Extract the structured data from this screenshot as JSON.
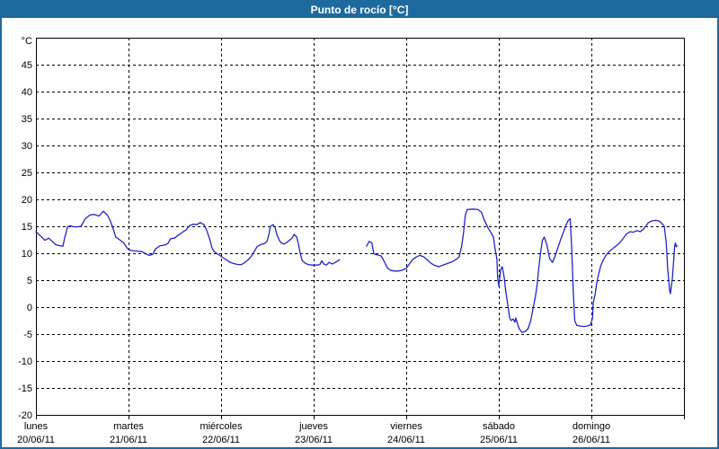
{
  "window": {
    "title": "Punto de rocío [°C]"
  },
  "colors": {
    "titlebar_bg": "#1e6a9e",
    "frame_border": "#1e6a9e",
    "plot_background": "#fdfefd",
    "grid": "#000000",
    "axis": "#000000",
    "line": "#2424c8",
    "title_text": "#ffffff",
    "label_text": "#000000"
  },
  "chart_data": {
    "type": "line",
    "title": "Punto de rocío [°C]",
    "y_unit_label": "°C",
    "xlabel": "",
    "ylabel": "",
    "ylim": [
      -20,
      50
    ],
    "y_ticks": [
      45,
      40,
      35,
      30,
      25,
      20,
      15,
      10,
      5,
      0,
      -5,
      -10,
      -15,
      -20
    ],
    "x_span_days": 7,
    "x_hours_total": 168,
    "x_categories": [
      {
        "name": "lunes",
        "date": "20/06/11"
      },
      {
        "name": "martes",
        "date": "21/06/11"
      },
      {
        "name": "miércoles",
        "date": "22/06/11"
      },
      {
        "name": "jueves",
        "date": "23/06/11"
      },
      {
        "name": "viernes",
        "date": "24/06/11"
      },
      {
        "name": "sábado",
        "date": "25/06/11"
      },
      {
        "name": "domingo",
        "date": "26/06/11"
      }
    ],
    "grid": "dashed",
    "legend_position": "none",
    "series": [
      {
        "name": "Punto de rocío",
        "unit": "°C",
        "color": "#2424c8",
        "x_encoding": "hours since lunes 20/06/11 00:00",
        "segments": [
          [
            [
              0,
              14
            ],
            [
              1.2,
              13.2
            ],
            [
              2.3,
              12.4
            ],
            [
              3.3,
              12.8
            ],
            [
              4.2,
              12.2
            ],
            [
              5.1,
              11.6
            ],
            [
              6.1,
              11.4
            ],
            [
              7,
              11.3
            ],
            [
              7.5,
              13
            ],
            [
              8.2,
              14.9
            ],
            [
              8.9,
              15.1
            ],
            [
              9.8,
              14.9
            ],
            [
              10.7,
              14.9
            ],
            [
              11.7,
              15
            ],
            [
              12.8,
              16.4
            ],
            [
              14,
              17.1
            ],
            [
              15.1,
              17.2
            ],
            [
              16.3,
              16.9
            ],
            [
              17.5,
              17.8
            ],
            [
              18.6,
              17
            ],
            [
              19.3,
              16
            ],
            [
              20,
              14.6
            ],
            [
              20.7,
              13
            ],
            [
              21.7,
              12.5
            ],
            [
              22.8,
              11.9
            ],
            [
              23.8,
              10.8
            ],
            [
              24.7,
              10.5
            ],
            [
              26.1,
              10.4
            ],
            [
              27.5,
              10.3
            ],
            [
              28.4,
              9.9
            ],
            [
              29.4,
              9.6
            ],
            [
              30.3,
              9.8
            ],
            [
              31,
              10.8
            ],
            [
              32.2,
              11.4
            ],
            [
              33.3,
              11.5
            ],
            [
              34.2,
              11.8
            ],
            [
              34.9,
              12.7
            ],
            [
              35.9,
              12.8
            ],
            [
              36.8,
              13.3
            ],
            [
              38,
              13.9
            ],
            [
              38.9,
              14.3
            ],
            [
              39.8,
              15.1
            ],
            [
              40.8,
              15.4
            ],
            [
              41.7,
              15.3
            ],
            [
              42.6,
              15.7
            ],
            [
              43.6,
              15.3
            ],
            [
              44.3,
              14.2
            ],
            [
              44.7,
              13.4
            ],
            [
              45.2,
              12.2
            ],
            [
              45.6,
              11.1
            ],
            [
              46.1,
              10.4
            ],
            [
              46.8,
              10
            ],
            [
              47.7,
              9.6
            ],
            [
              48,
              9.4
            ],
            [
              48.9,
              9
            ],
            [
              50.1,
              8.4
            ],
            [
              51.2,
              8.1
            ],
            [
              52.4,
              7.9
            ],
            [
              53.3,
              7.9
            ],
            [
              54,
              8.2
            ],
            [
              54.9,
              8.7
            ],
            [
              55.8,
              9.4
            ],
            [
              56.6,
              10.3
            ],
            [
              57.3,
              11.2
            ],
            [
              58.2,
              11.6
            ],
            [
              59.2,
              11.8
            ],
            [
              59.9,
              12.2
            ],
            [
              60.4,
              13.5
            ],
            [
              60.8,
              15
            ],
            [
              61.5,
              15.3
            ],
            [
              62,
              14.8
            ],
            [
              62.4,
              13.6
            ],
            [
              63.1,
              12.4
            ],
            [
              63.6,
              11.9
            ],
            [
              64.3,
              11.7
            ],
            [
              65.2,
              12.1
            ],
            [
              66.4,
              12.8
            ],
            [
              66.9,
              13.5
            ],
            [
              67.6,
              13
            ],
            [
              68,
              11.9
            ],
            [
              68.5,
              10
            ],
            [
              69,
              8.7
            ],
            [
              69.7,
              8.2
            ],
            [
              70.6,
              7.9
            ],
            [
              71.5,
              7.8
            ],
            [
              72.7,
              7.8
            ],
            [
              73.6,
              7.9
            ],
            [
              74.1,
              8.6
            ],
            [
              74.6,
              8
            ],
            [
              75.3,
              7.8
            ],
            [
              76,
              8.3
            ],
            [
              76.9,
              8
            ],
            [
              77.6,
              8.3
            ],
            [
              78.3,
              8.6
            ],
            [
              78.7,
              8.8
            ]
          ],
          [
            [
              85.7,
              11.3
            ],
            [
              86.4,
              12.2
            ],
            [
              87.1,
              11.9
            ],
            [
              87.6,
              9.9
            ],
            [
              88.5,
              9.7
            ],
            [
              89.5,
              9.5
            ],
            [
              90.2,
              8.6
            ],
            [
              91.1,
              7.3
            ],
            [
              92,
              6.8
            ],
            [
              93,
              6.7
            ],
            [
              94.1,
              6.7
            ],
            [
              95.1,
              6.9
            ],
            [
              96,
              7.2
            ],
            [
              96.9,
              8.1
            ],
            [
              97.6,
              8.8
            ],
            [
              98.6,
              9.3
            ],
            [
              99.5,
              9.6
            ],
            [
              100.4,
              9.4
            ],
            [
              101.3,
              8.9
            ],
            [
              102.3,
              8.2
            ],
            [
              103.2,
              7.8
            ],
            [
              104.4,
              7.5
            ],
            [
              105.5,
              7.8
            ],
            [
              106.7,
              8.1
            ],
            [
              107.9,
              8.4
            ],
            [
              109,
              8.9
            ],
            [
              109.7,
              9.3
            ],
            [
              110.4,
              11.4
            ],
            [
              110.9,
              14
            ],
            [
              111.3,
              17
            ],
            [
              111.8,
              18.1
            ],
            [
              113.2,
              18.2
            ],
            [
              114.6,
              18.1
            ],
            [
              115.5,
              17.6
            ],
            [
              116.2,
              16.2
            ],
            [
              117.2,
              14.7
            ],
            [
              117.9,
              13.9
            ],
            [
              118.6,
              13
            ],
            [
              119,
              11
            ],
            [
              119.5,
              8.9
            ],
            [
              119.7,
              5.5
            ],
            [
              120,
              3.9
            ],
            [
              120.5,
              7
            ],
            [
              120.9,
              7.5
            ],
            [
              121.4,
              5.5
            ],
            [
              121.8,
              3
            ],
            [
              122.3,
              0.5
            ],
            [
              122.8,
              -1.9
            ],
            [
              123.2,
              -2.5
            ],
            [
              123.7,
              -2.2
            ],
            [
              124.2,
              -2.8
            ],
            [
              124.4,
              -2
            ],
            [
              124.9,
              -3.2
            ],
            [
              125.3,
              -4
            ],
            [
              126,
              -4.7
            ],
            [
              126.9,
              -4.5
            ],
            [
              127.6,
              -4
            ],
            [
              128.3,
              -2.5
            ],
            [
              128.8,
              -0.5
            ],
            [
              129.5,
              2
            ],
            [
              130,
              4.5
            ],
            [
              130.4,
              7.5
            ],
            [
              130.9,
              10.5
            ],
            [
              131.3,
              12.4
            ],
            [
              131.8,
              13
            ],
            [
              132.5,
              11.5
            ],
            [
              133.2,
              9
            ],
            [
              133.9,
              8.3
            ],
            [
              134.6,
              9.5
            ],
            [
              135.3,
              11
            ],
            [
              136,
              12.5
            ],
            [
              136.7,
              13.8
            ],
            [
              137.4,
              15.2
            ],
            [
              138,
              16.1
            ],
            [
              138.5,
              16.4
            ],
            [
              138.9,
              11
            ],
            [
              139.3,
              3
            ],
            [
              139.7,
              -2.5
            ],
            [
              140.2,
              -3.4
            ],
            [
              141,
              -3.5
            ],
            [
              142.1,
              -3.6
            ],
            [
              143,
              -3.5
            ],
            [
              143.8,
              -3.3
            ],
            [
              144.3,
              -2
            ],
            [
              144.5,
              0.8
            ],
            [
              145,
              2.5
            ],
            [
              145.4,
              4.5
            ],
            [
              145.9,
              6.2
            ],
            [
              146.4,
              7.6
            ],
            [
              147.1,
              8.8
            ],
            [
              147.8,
              9.6
            ],
            [
              148.7,
              10.4
            ],
            [
              149.6,
              10.9
            ],
            [
              150.5,
              11.4
            ],
            [
              151.4,
              12
            ],
            [
              152.4,
              12.9
            ],
            [
              153.1,
              13.6
            ],
            [
              154,
              14
            ],
            [
              154.9,
              13.9
            ],
            [
              155.8,
              14.2
            ],
            [
              156.7,
              14
            ],
            [
              157.4,
              14.4
            ],
            [
              158.1,
              15
            ],
            [
              158.8,
              15.7
            ],
            [
              159.7,
              16
            ],
            [
              160.6,
              16.1
            ],
            [
              161.5,
              16
            ],
            [
              162.2,
              15.6
            ],
            [
              162.9,
              15
            ],
            [
              163.4,
              11.9
            ],
            [
              163.8,
              6.9
            ],
            [
              164.3,
              3.1
            ],
            [
              164.5,
              2.5
            ],
            [
              165,
              5.3
            ],
            [
              165.4,
              9.2
            ],
            [
              165.6,
              11.4
            ],
            [
              165.8,
              11.9
            ],
            [
              166,
              11.2
            ],
            [
              166.2,
              11.4
            ]
          ]
        ]
      }
    ]
  }
}
